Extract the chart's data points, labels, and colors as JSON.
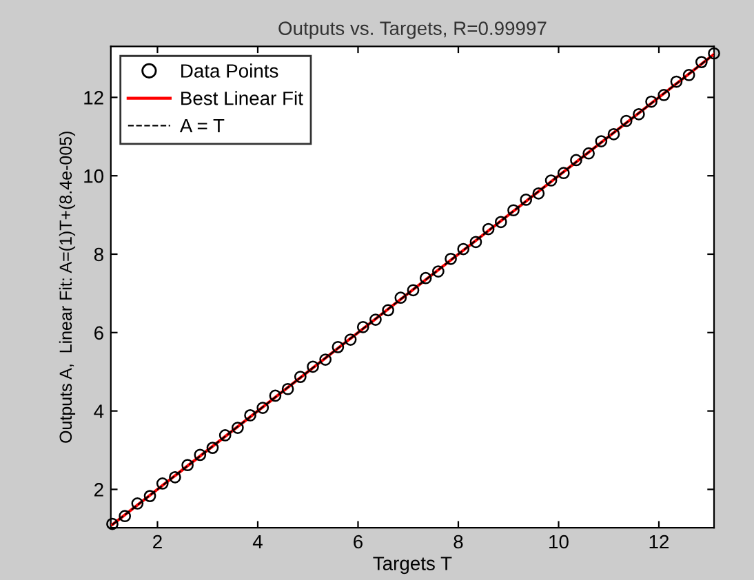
{
  "chart_data": {
    "type": "scatter",
    "title": "Outputs vs. Targets, R=0.99997",
    "xlabel": "Targets T",
    "ylabel": "Outputs A,  Linear Fit: A=(1)T+(8.4e-005)",
    "xlim": [
      1.07,
      13.1
    ],
    "ylim": [
      1.02,
      13.3
    ],
    "xticks": [
      2,
      4,
      6,
      8,
      10,
      12
    ],
    "yticks": [
      2,
      4,
      6,
      8,
      10,
      12
    ],
    "grid": false,
    "legend": "top left",
    "series": [
      {
        "name": "Data Points",
        "marker": "circle",
        "color": "#000000",
        "x": [
          1.1,
          1.35,
          1.6,
          1.85,
          2.1,
          2.35,
          2.6,
          2.85,
          3.1,
          3.35,
          3.6,
          3.85,
          4.1,
          4.35,
          4.6,
          4.85,
          5.1,
          5.35,
          5.6,
          5.85,
          6.1,
          6.35,
          6.6,
          6.85,
          7.1,
          7.35,
          7.6,
          7.85,
          8.1,
          8.35,
          8.6,
          8.85,
          9.1,
          9.35,
          9.6,
          9.85,
          10.1,
          10.35,
          10.6,
          10.85,
          11.1,
          11.35,
          11.6,
          11.85,
          12.1,
          12.35,
          12.6,
          12.85,
          13.1
        ],
        "values": [
          1.12,
          1.32,
          1.64,
          1.83,
          2.15,
          2.31,
          2.62,
          2.88,
          3.06,
          3.38,
          3.57,
          3.89,
          4.08,
          4.39,
          4.56,
          4.87,
          5.13,
          5.31,
          5.63,
          5.82,
          6.14,
          6.33,
          6.57,
          6.89,
          7.08,
          7.39,
          7.56,
          7.88,
          8.13,
          8.31,
          8.64,
          8.82,
          9.12,
          9.39,
          9.55,
          9.88,
          10.07,
          10.4,
          10.57,
          10.88,
          11.06,
          11.4,
          11.57,
          11.89,
          12.06,
          12.4,
          12.57,
          12.9,
          13.12
        ]
      },
      {
        "name": "Best Linear Fit",
        "type": "line",
        "line_style": "solid",
        "color": "#ff0000",
        "x": [
          1.1,
          13.1
        ],
        "values": [
          1.1,
          13.1
        ]
      },
      {
        "name": "A = T",
        "type": "line",
        "line_style": "dashed",
        "color": "#000000",
        "x": [
          1.1,
          13.1
        ],
        "values": [
          1.1,
          13.1
        ]
      }
    ]
  }
}
